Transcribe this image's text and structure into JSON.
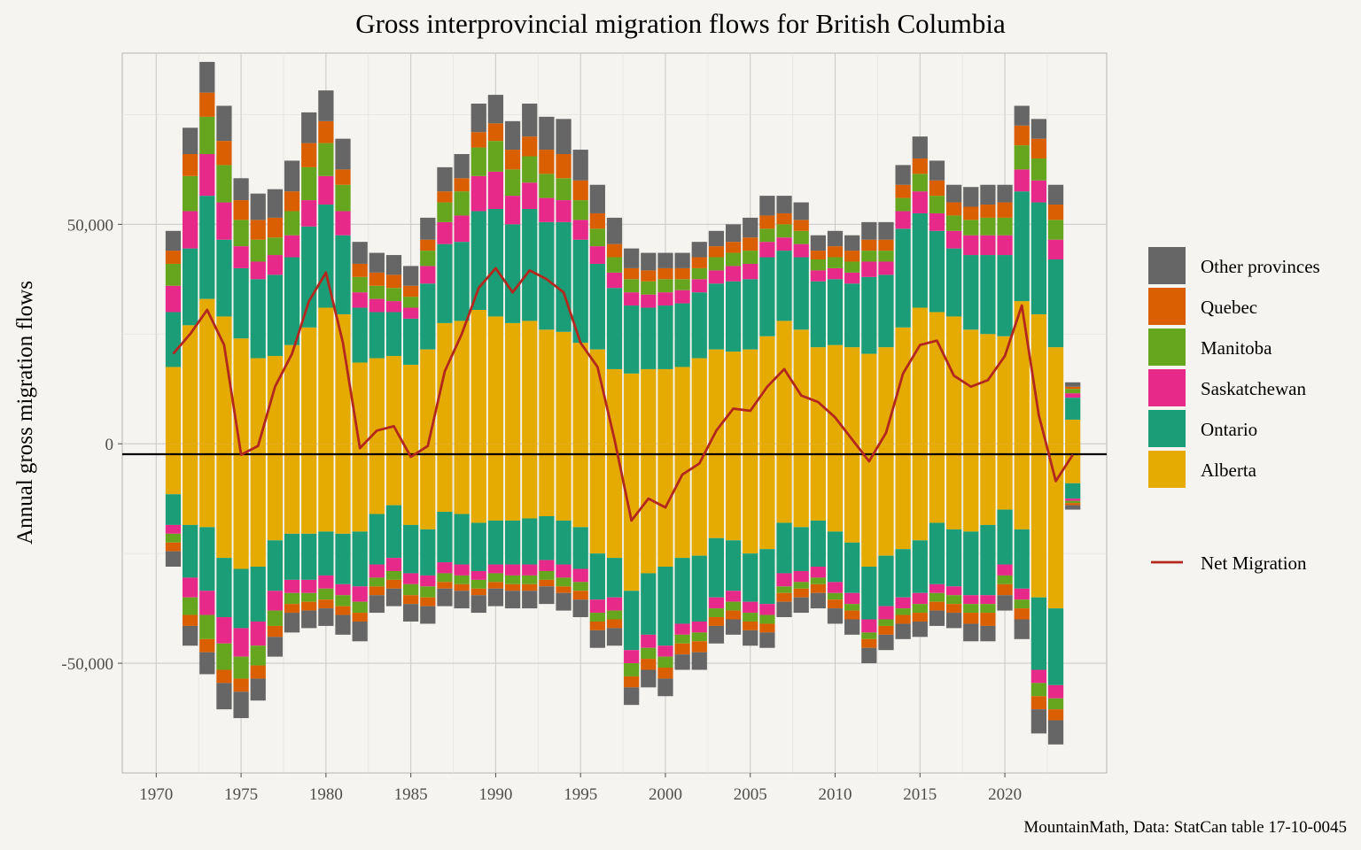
{
  "chart_data": {
    "type": "bar",
    "title": "Gross interprovincial migration flows for British Columbia",
    "ylabel": "Annual gross migration flows",
    "xlabel": "",
    "caption": "MountainMath, Data: StatCan table 17-10-0045",
    "xlim": [
      1968,
      2026
    ],
    "ylim": [
      -75000,
      89000
    ],
    "x_ticks": [
      1970,
      1975,
      1980,
      1985,
      1990,
      1995,
      2000,
      2005,
      2010,
      2015,
      2020
    ],
    "x_tick_labels": [
      "1970",
      "1975",
      "1980",
      "1985",
      "1990",
      "1995",
      "2000",
      "2005",
      "2010",
      "2015",
      "2020"
    ],
    "y_ticks": [
      -50000,
      0,
      50000
    ],
    "y_tick_labels": [
      "-50,000",
      "0",
      "50,000"
    ],
    "grid": true,
    "legend_position": "right",
    "x": [
      1971,
      1972,
      1973,
      1974,
      1975,
      1976,
      1977,
      1978,
      1979,
      1980,
      1981,
      1982,
      1983,
      1984,
      1985,
      1986,
      1987,
      1988,
      1989,
      1990,
      1991,
      1992,
      1993,
      1994,
      1995,
      1996,
      1997,
      1998,
      1999,
      2000,
      2001,
      2002,
      2003,
      2004,
      2005,
      2006,
      2007,
      2008,
      2009,
      2010,
      2011,
      2012,
      2013,
      2014,
      2015,
      2016,
      2017,
      2018,
      2019,
      2020,
      2021,
      2022,
      2023,
      2024
    ],
    "series": [
      {
        "name": "Alberta",
        "color": "#e6ab02",
        "inflow": [
          17500,
          27000,
          33000,
          29000,
          24000,
          19500,
          20000,
          22500,
          26500,
          31000,
          29500,
          18500,
          19500,
          20000,
          18000,
          21500,
          27500,
          28000,
          30500,
          29000,
          27500,
          28000,
          26000,
          25500,
          23000,
          21500,
          17000,
          16000,
          17000,
          17000,
          17500,
          19500,
          21500,
          21000,
          21500,
          24500,
          28000,
          26000,
          22000,
          22500,
          22000,
          20500,
          22000,
          26500,
          31000,
          30000,
          29000,
          26000,
          25000,
          24500,
          32500,
          29500,
          22000,
          5500
        ],
        "outflow": [
          11500,
          18500,
          19000,
          26000,
          28500,
          28000,
          22000,
          20500,
          20500,
          20000,
          20500,
          20000,
          16000,
          14000,
          18500,
          19500,
          15500,
          16000,
          18000,
          17500,
          17500,
          17000,
          16500,
          17500,
          19000,
          25000,
          26000,
          33500,
          29500,
          28000,
          26000,
          25500,
          21500,
          22000,
          25000,
          24000,
          18000,
          19000,
          17500,
          20000,
          22500,
          28000,
          25500,
          24000,
          22000,
          18000,
          19500,
          20000,
          18500,
          15000,
          19500,
          35000,
          37500,
          9000
        ]
      },
      {
        "name": "Ontario",
        "color": "#1b9e77",
        "inflow": [
          12500,
          17500,
          23500,
          17500,
          16000,
          18000,
          18500,
          20000,
          23000,
          23500,
          18000,
          12500,
          10500,
          10000,
          10500,
          15000,
          18000,
          18000,
          22500,
          24500,
          22500,
          25500,
          24500,
          25000,
          23500,
          19500,
          18500,
          15500,
          14000,
          14500,
          14500,
          15000,
          15000,
          16000,
          16000,
          18000,
          16000,
          16500,
          15000,
          15000,
          14500,
          17500,
          16500,
          22500,
          21500,
          18500,
          15500,
          17000,
          18000,
          18500,
          25000,
          25500,
          20000,
          5000
        ],
        "outflow": [
          7000,
          12000,
          14500,
          13500,
          13500,
          12500,
          11500,
          10500,
          10500,
          10000,
          11500,
          12500,
          11500,
          12000,
          11000,
          10500,
          11500,
          11500,
          11000,
          10000,
          10000,
          10500,
          10000,
          10000,
          9500,
          10500,
          9000,
          13500,
          14000,
          18000,
          15000,
          15000,
          13500,
          11500,
          11000,
          12500,
          11500,
          10000,
          10500,
          11500,
          11500,
          12000,
          11500,
          11000,
          12000,
          14000,
          13000,
          14500,
          16000,
          12500,
          13500,
          16500,
          17500,
          3500
        ]
      },
      {
        "name": "Saskatchewan",
        "color": "#e7298a",
        "inflow": [
          6000,
          8500,
          9500,
          8500,
          5000,
          4000,
          4500,
          5000,
          6000,
          6500,
          5500,
          3500,
          3000,
          2500,
          2500,
          4000,
          5000,
          6000,
          8000,
          8500,
          6500,
          6000,
          5500,
          5000,
          4500,
          4000,
          3500,
          3000,
          3000,
          3000,
          3000,
          3000,
          3000,
          3500,
          3500,
          3500,
          3000,
          3000,
          2500,
          2500,
          2500,
          3500,
          3000,
          4000,
          5000,
          4000,
          4000,
          4500,
          4500,
          4500,
          5000,
          5000,
          4500,
          1000
        ],
        "outflow": [
          2000,
          4500,
          5500,
          6000,
          6500,
          5500,
          4500,
          3000,
          3000,
          3000,
          2500,
          3500,
          3000,
          3000,
          2500,
          2500,
          2500,
          2500,
          2000,
          2000,
          2500,
          2500,
          2500,
          3000,
          3000,
          3000,
          3000,
          3000,
          3000,
          2500,
          2500,
          2500,
          2500,
          2500,
          2500,
          2500,
          3000,
          2500,
          2500,
          2500,
          2500,
          3000,
          3000,
          2500,
          2500,
          2000,
          2000,
          2000,
          2000,
          2500,
          2500,
          3000,
          3000,
          500
        ]
      },
      {
        "name": "Manitoba",
        "color": "#66a61e",
        "inflow": [
          5000,
          8000,
          8500,
          8500,
          6000,
          5000,
          4000,
          5500,
          7500,
          7500,
          6000,
          3500,
          3000,
          3000,
          2500,
          3500,
          4500,
          5500,
          6500,
          7000,
          6000,
          6000,
          5500,
          5000,
          4500,
          4000,
          3500,
          3000,
          3000,
          3000,
          2500,
          2500,
          3000,
          3000,
          3000,
          3000,
          3000,
          3000,
          2500,
          2500,
          2500,
          2500,
          2500,
          3000,
          4000,
          4000,
          3500,
          3500,
          4000,
          4000,
          5500,
          5000,
          4500,
          1000
        ],
        "outflow": [
          2000,
          4000,
          5500,
          6000,
          5000,
          4500,
          3500,
          2500,
          2000,
          2500,
          2500,
          2500,
          2000,
          2000,
          2500,
          2500,
          2000,
          2000,
          2000,
          2000,
          2000,
          2000,
          2000,
          2000,
          2000,
          2000,
          2000,
          3000,
          2500,
          2500,
          2000,
          2000,
          2000,
          2000,
          2000,
          2000,
          1500,
          1500,
          1500,
          1500,
          1500,
          1500,
          1500,
          1500,
          2000,
          2000,
          2000,
          2000,
          2000,
          2000,
          2000,
          3000,
          2500,
          500
        ]
      },
      {
        "name": "Quebec",
        "color": "#d95f02",
        "inflow": [
          3000,
          5000,
          5500,
          5500,
          4500,
          4500,
          4500,
          4500,
          5500,
          5000,
          3500,
          3000,
          3000,
          3000,
          2500,
          2500,
          2500,
          3000,
          3500,
          4000,
          4500,
          4500,
          5500,
          5500,
          4500,
          3500,
          3000,
          2500,
          2500,
          2500,
          2500,
          2500,
          2500,
          2500,
          3000,
          3000,
          2500,
          2500,
          2000,
          2500,
          2500,
          2500,
          2500,
          3000,
          3500,
          3500,
          3000,
          3000,
          3000,
          3500,
          4500,
          4500,
          3500,
          500
        ],
        "outflow": [
          2000,
          2500,
          3000,
          3000,
          3000,
          3000,
          2500,
          2000,
          2000,
          2000,
          2000,
          2000,
          2000,
          2000,
          2000,
          2000,
          1500,
          1500,
          1500,
          1500,
          1500,
          1500,
          1500,
          1500,
          2000,
          2000,
          2000,
          2500,
          2500,
          2500,
          2500,
          2500,
          2000,
          2000,
          2000,
          2000,
          2000,
          2000,
          2000,
          2000,
          2000,
          2000,
          2000,
          2000,
          2000,
          2000,
          2000,
          2500,
          3000,
          2500,
          2500,
          3000,
          2500,
          500
        ]
      },
      {
        "name": "Other provinces",
        "color": "#666666",
        "inflow": [
          4500,
          6000,
          7000,
          8000,
          5000,
          6000,
          6500,
          7000,
          7000,
          7000,
          7000,
          5000,
          4500,
          4500,
          4500,
          5000,
          5500,
          5500,
          6500,
          6500,
          6500,
          7500,
          7500,
          8000,
          7000,
          6500,
          6000,
          4500,
          4000,
          3500,
          3500,
          3500,
          3500,
          4000,
          4500,
          4500,
          4000,
          4000,
          3500,
          3500,
          3500,
          4000,
          4000,
          4500,
          5000,
          4500,
          4000,
          4500,
          4500,
          4000,
          4500,
          4500,
          4500,
          1000
        ],
        "outflow": [
          3500,
          4500,
          5000,
          6000,
          6000,
          5000,
          4500,
          4500,
          4000,
          4000,
          4500,
          4500,
          4000,
          4000,
          4000,
          4000,
          4000,
          4000,
          4000,
          4000,
          4000,
          4000,
          4000,
          4000,
          4000,
          4000,
          4000,
          4000,
          4000,
          4000,
          3500,
          4000,
          4000,
          3500,
          3500,
          3500,
          3500,
          3500,
          3500,
          3500,
          3500,
          3500,
          3500,
          3500,
          3500,
          3500,
          3500,
          4000,
          3500,
          3500,
          4500,
          5500,
          5500,
          1000
        ]
      }
    ],
    "net_migration": {
      "name": "Net Migration",
      "color": "#b2281e",
      "values": [
        20500,
        25000,
        30500,
        22500,
        -2500,
        -500,
        13000,
        20500,
        32500,
        39000,
        23000,
        -1000,
        3000,
        4000,
        -3000,
        -500,
        16500,
        25000,
        35500,
        40000,
        34500,
        39500,
        37500,
        34500,
        23000,
        17500,
        1000,
        -17500,
        -12500,
        -14500,
        -7000,
        -4500,
        3000,
        8000,
        7500,
        13000,
        17000,
        11000,
        9500,
        6000,
        1000,
        -4000,
        2500,
        16000,
        22500,
        23500,
        15500,
        13000,
        14500,
        20000,
        31500,
        6500,
        -8500,
        -2500
      ]
    }
  }
}
